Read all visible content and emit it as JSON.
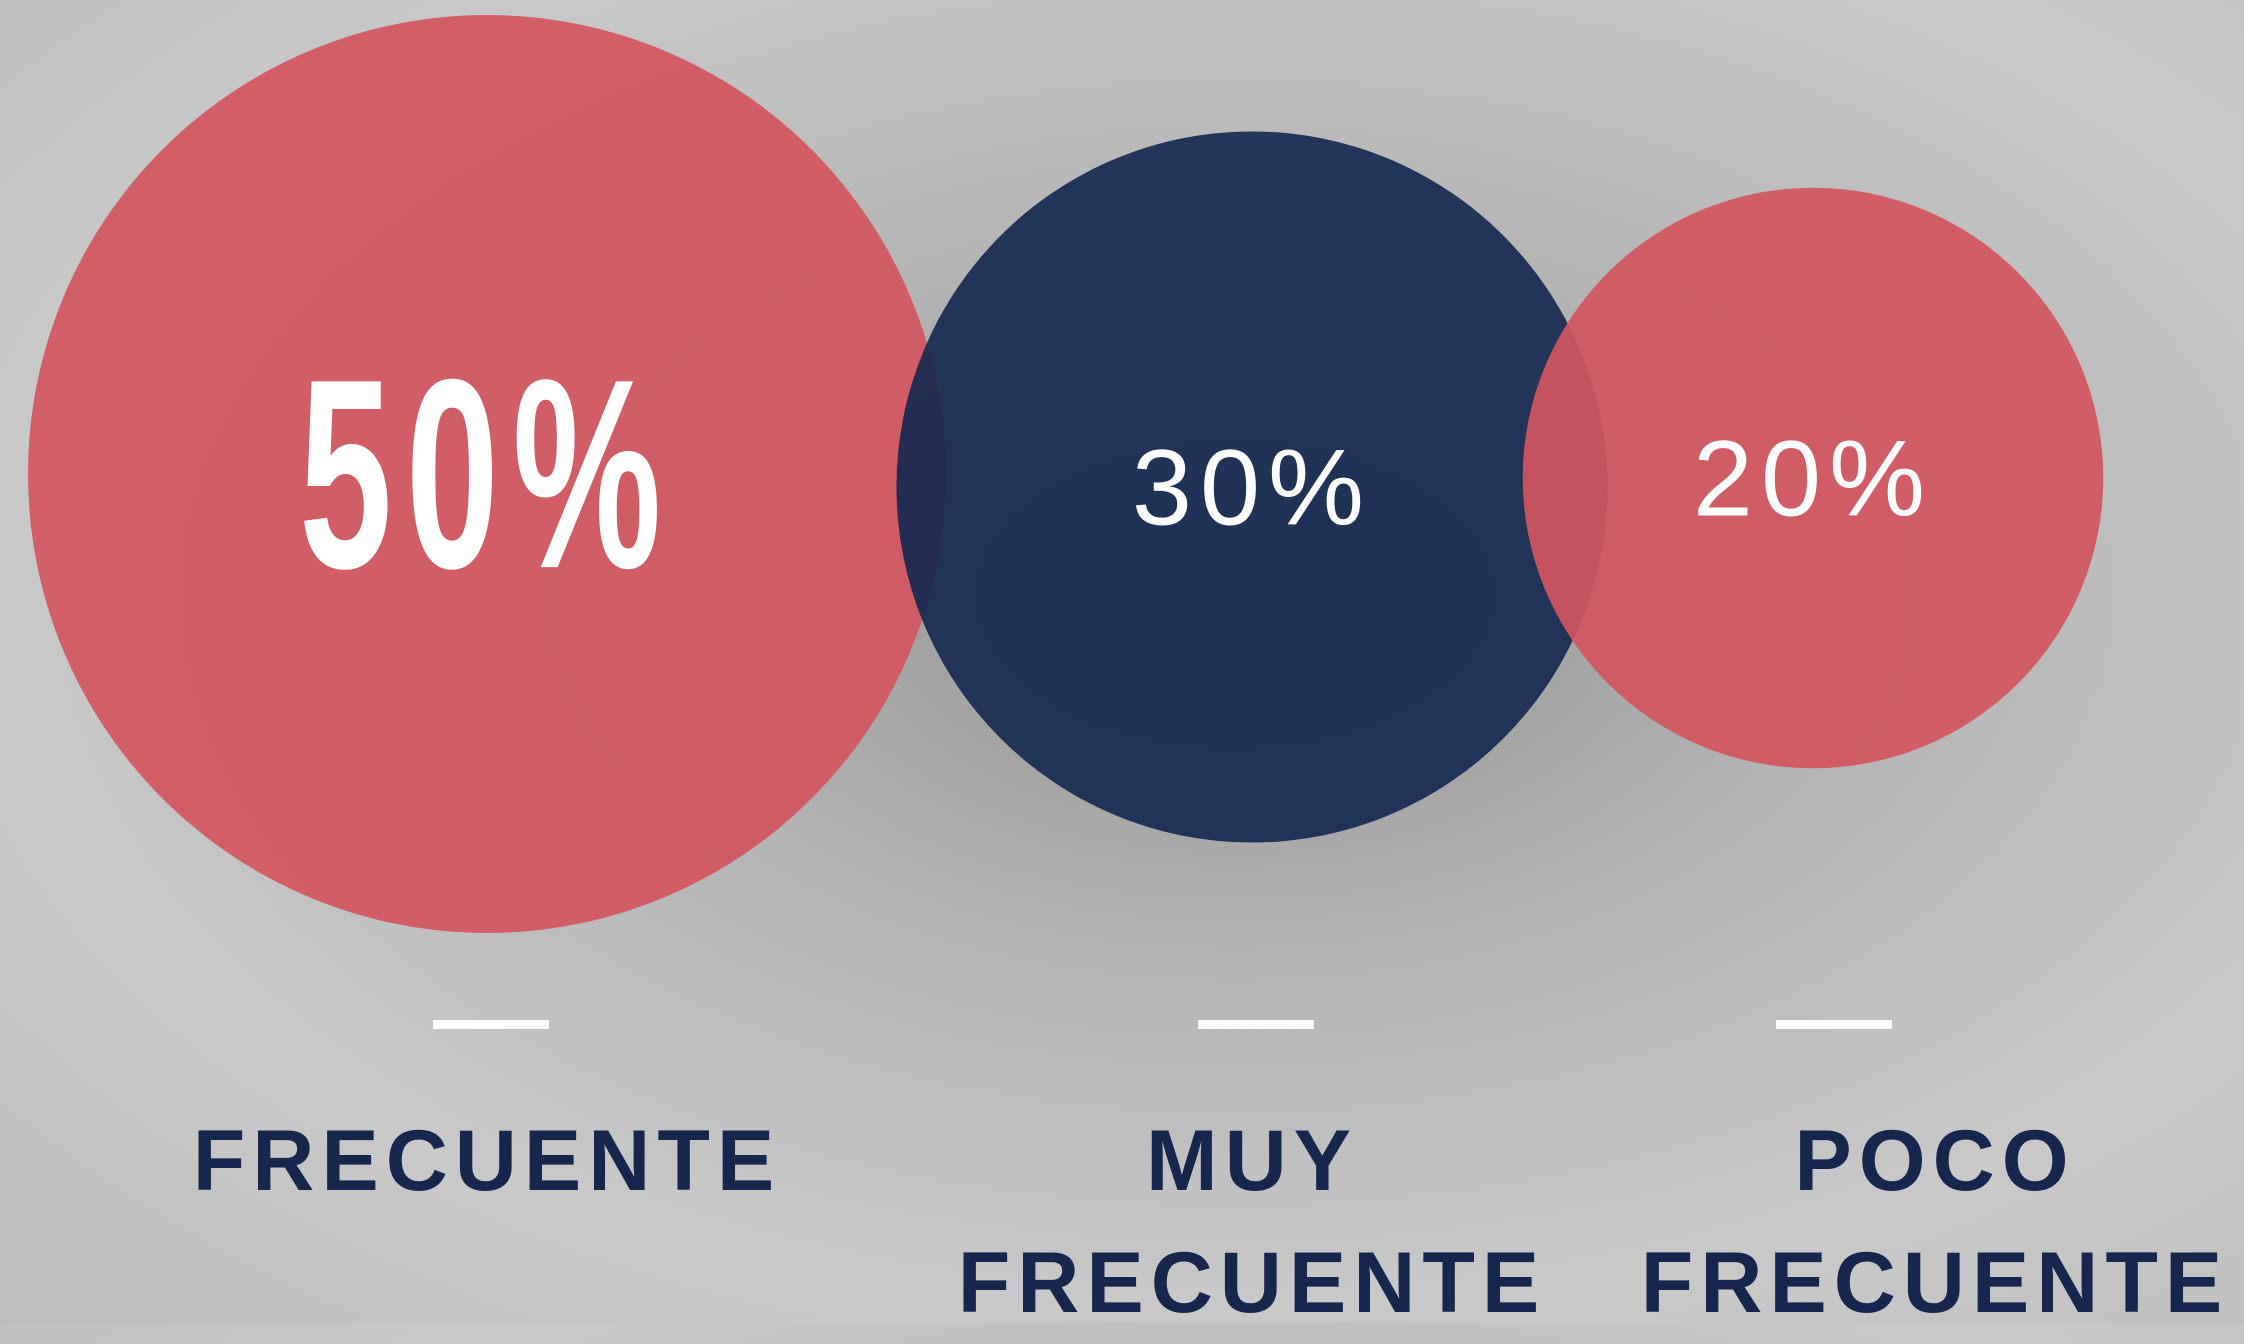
{
  "chart_data": {
    "type": "bubble",
    "categories": [
      "FRECUENTE",
      "MUY FRECUENTE",
      "POCO FRECUENTE"
    ],
    "values": [
      50,
      30,
      20
    ],
    "value_labels": [
      "50%",
      "30%",
      "20%"
    ],
    "colors": [
      "#d3565f",
      "#16294f",
      "#d3565f"
    ]
  }
}
